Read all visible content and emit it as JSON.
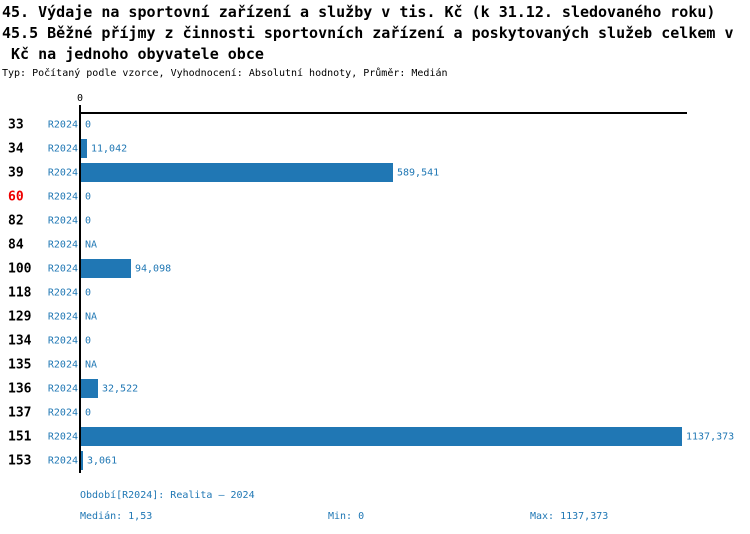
{
  "header": {
    "line1": "45. Výdaje na sportovní zařízení a služby v tis. Kč (k 31.12. sledovaného roku)",
    "line2": "45.5 Běžné příjmy z činnosti sportovních zařízení a poskytovaných služeb celkem v",
    "line3": " Kč na jednoho obyvatele obce",
    "subtitle": "Typ: Počítaný podle vzorce, Vyhodnocení: Absolutní hodnoty, Průměr: Medián"
  },
  "chart_data": {
    "type": "bar",
    "orientation": "horizontal",
    "title": "45.5 Běžné příjmy z činnosti sportovních zařízení a poskytovaných služeb celkem v Kč na jednoho obyvatele obce",
    "series_name": "R2024",
    "categories": [
      "33",
      "34",
      "39",
      "60",
      "82",
      "84",
      "100",
      "118",
      "129",
      "134",
      "135",
      "136",
      "137",
      "151",
      "153"
    ],
    "values": [
      0,
      11.042,
      589.541,
      0,
      0,
      null,
      94.098,
      0,
      null,
      0,
      null,
      32.522,
      0,
      1137.373,
      3.061
    ],
    "value_labels": [
      "0",
      "11,042",
      "589,541",
      "0",
      "0",
      "NA",
      "94,098",
      "0",
      "NA",
      "0",
      "NA",
      "32,522",
      "0",
      "1137,373",
      "3,061"
    ],
    "na_categories": [
      "84",
      "129",
      "135"
    ],
    "highlighted_category": "60",
    "axis_tick_label": "0",
    "xlim": [
      0,
      1137.373
    ],
    "grid": false,
    "legend": false
  },
  "footer": {
    "period": "Období[R2024]: Realita – 2024",
    "median": "Medián: 1,53",
    "min": "Min: 0",
    "max": "Max: 1137,373"
  },
  "colors": {
    "bar": "#2077b4",
    "text_blue": "#1f77b4",
    "highlight_red": "#ee0000",
    "axis": "#000000"
  }
}
